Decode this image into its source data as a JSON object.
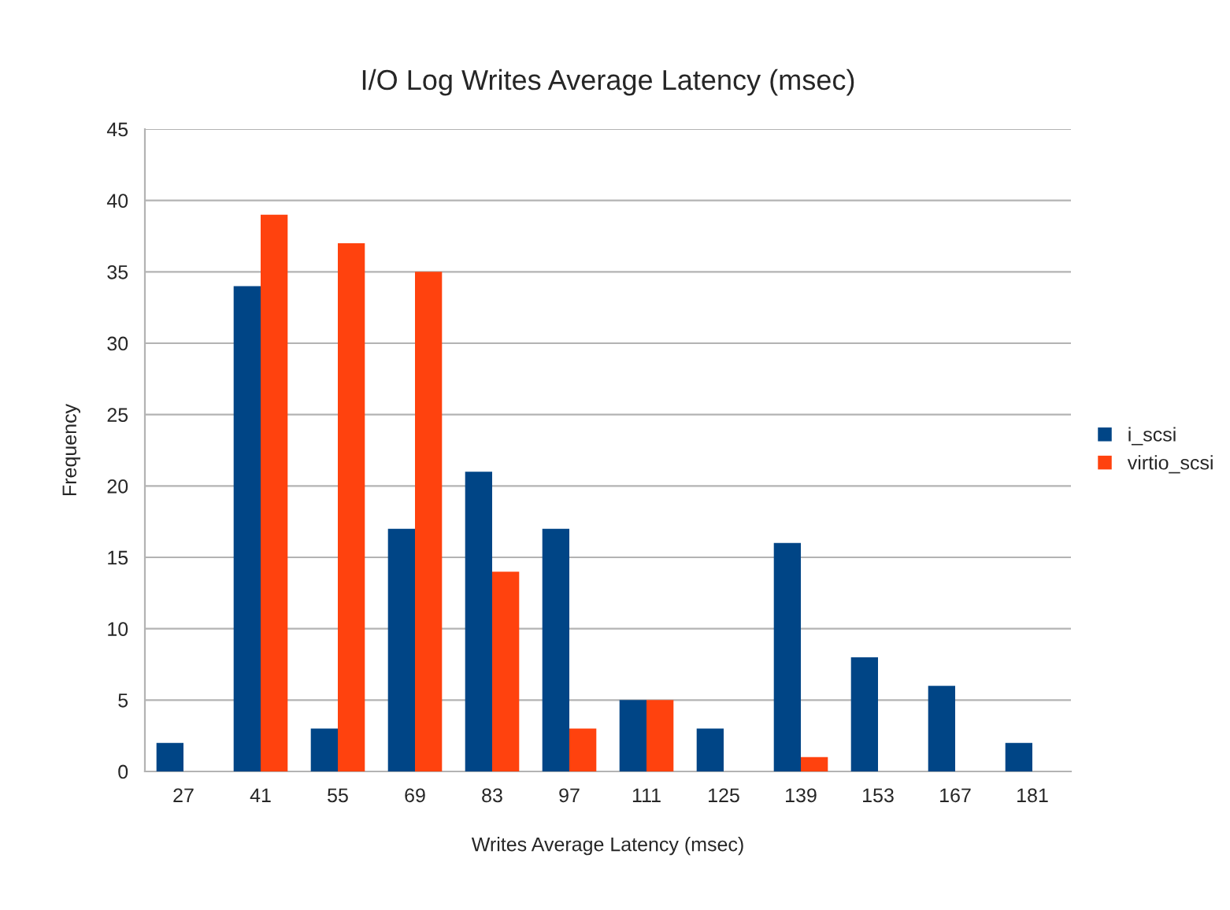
{
  "chart_data": {
    "type": "bar",
    "title": "I/O Log Writes Average Latency (msec)",
    "xlabel": "Writes Average Latency (msec)",
    "ylabel": "Frequency",
    "categories": [
      "27",
      "41",
      "55",
      "69",
      "83",
      "97",
      "111",
      "125",
      "139",
      "153",
      "167",
      "181"
    ],
    "series": [
      {
        "name": "i_scsi",
        "color": "#004586",
        "values": [
          2,
          34,
          3,
          17,
          21,
          17,
          5,
          3,
          16,
          8,
          6,
          2
        ]
      },
      {
        "name": "virtio_scsi",
        "color": "#ff420e",
        "values": [
          null,
          39,
          37,
          35,
          14,
          3,
          5,
          null,
          1,
          null,
          null,
          null
        ]
      }
    ],
    "ylim": [
      0,
      45
    ],
    "yticks": [
      0,
      5,
      10,
      15,
      20,
      25,
      30,
      35,
      40,
      45
    ],
    "grid": "y",
    "legend": "right"
  }
}
